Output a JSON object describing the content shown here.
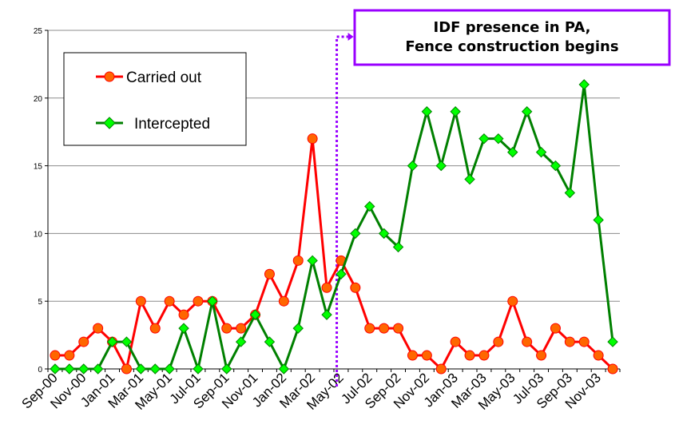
{
  "chart_data": {
    "type": "line",
    "categories": [
      "Sep-00",
      "Oct-00",
      "Nov-00",
      "Dec-00",
      "Jan-01",
      "Feb-01",
      "Mar-01",
      "Apr-01",
      "May-01",
      "Jun-01",
      "Jul-01",
      "Aug-01",
      "Sep-01",
      "Oct-01",
      "Nov-01",
      "Dec-01",
      "Jan-02",
      "Feb-02",
      "Mar-02",
      "Apr-02",
      "May-02",
      "Jun-02",
      "Jul-02",
      "Aug-02",
      "Sep-02",
      "Oct-02",
      "Nov-02",
      "Dec-02",
      "Jan-03",
      "Feb-03",
      "Mar-03",
      "Apr-03",
      "May-03",
      "Jun-03",
      "Jul-03",
      "Aug-03",
      "Sep-03",
      "Oct-03",
      "Nov-03",
      "Dec-03"
    ],
    "x_tick_labels": [
      "Sep-00",
      "Nov-00",
      "Jan-01",
      "Mar-01",
      "May-01",
      "Jul-01",
      "Sep-01",
      "Nov-01",
      "Jan-02",
      "Mar-02",
      "May-02",
      "Jul-02",
      "Sep-02",
      "Nov-02",
      "Jan-03",
      "Mar-03",
      "May-03",
      "Jul-03",
      "Sep-03",
      "Nov-03"
    ],
    "y_ticks": [
      "0",
      "5",
      "10",
      "15",
      "20",
      "25"
    ],
    "ylim": [
      0,
      25
    ],
    "grid": true,
    "series": [
      {
        "name": "Carried out",
        "color": "#ff0000",
        "marker": "circle",
        "marker_fill": "#ff6600",
        "values": [
          1,
          1,
          2,
          3,
          2,
          0,
          5,
          3,
          5,
          4,
          5,
          5,
          3,
          3,
          4,
          7,
          5,
          8,
          17,
          6,
          8,
          6,
          3,
          3,
          3,
          1,
          1,
          0,
          2,
          1,
          1,
          2,
          5,
          2,
          1,
          3,
          2,
          2,
          1,
          0
        ]
      },
      {
        "name": "Intercepted",
        "color": "#008000",
        "marker": "diamond",
        "marker_fill": "#00ff00",
        "values": [
          0,
          0,
          0,
          0,
          2,
          2,
          0,
          0,
          0,
          3,
          0,
          5,
          0,
          2,
          4,
          2,
          0,
          3,
          8,
          4,
          7,
          10,
          12,
          10,
          9,
          15,
          19,
          15,
          19,
          14,
          17,
          17,
          16,
          19,
          16,
          15,
          13,
          21,
          11,
          2
        ]
      }
    ],
    "legend": {
      "position": "top-left",
      "entries": [
        "Carried out",
        "Intercepted"
      ]
    },
    "annotation": {
      "lines": [
        "IDF presence in PA,",
        "Fence construction begins"
      ],
      "border_color": "#9900ff",
      "marker_category": "May-02",
      "marker_color": "#9900ff"
    }
  }
}
